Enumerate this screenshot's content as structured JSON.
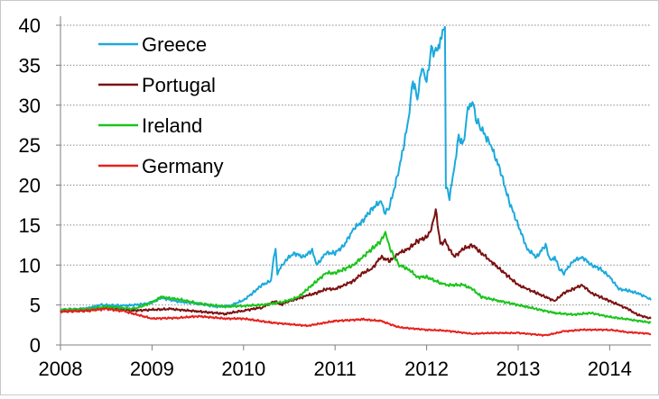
{
  "chart_data": {
    "type": "line",
    "title": "",
    "xlabel": "",
    "ylabel": "",
    "xlim": [
      2008.0,
      2014.45
    ],
    "ylim": [
      0,
      40
    ],
    "x_ticks": [
      2008,
      2009,
      2010,
      2011,
      2012,
      2013,
      2014
    ],
    "x_tick_labels": [
      "2008",
      "2009",
      "2010",
      "2011",
      "2012",
      "2013",
      "2014"
    ],
    "y_ticks": [
      0,
      5,
      10,
      15,
      20,
      25,
      30,
      35,
      40
    ],
    "y_tick_labels": [
      "0",
      "5",
      "10",
      "15",
      "20",
      "25",
      "30",
      "35",
      "40"
    ],
    "grid": "horizontal-dotted",
    "legend_position": "top-left",
    "series": [
      {
        "name": "Greece",
        "color": "#1ca9dc",
        "x": [
          2008.0,
          2008.25,
          2008.45,
          2008.7,
          2008.9,
          2009.0,
          2009.1,
          2009.3,
          2009.5,
          2009.7,
          2009.85,
          2010.0,
          2010.1,
          2010.2,
          2010.3,
          2010.33,
          2010.35,
          2010.37,
          2010.45,
          2010.55,
          2010.65,
          2010.75,
          2010.8,
          2010.9,
          2011.0,
          2011.1,
          2011.2,
          2011.3,
          2011.4,
          2011.5,
          2011.55,
          2011.6,
          2011.7,
          2011.8,
          2011.85,
          2011.9,
          2011.95,
          2012.0,
          2012.05,
          2012.1,
          2012.15,
          2012.2,
          2012.21,
          2012.25,
          2012.3,
          2012.35,
          2012.4,
          2012.45,
          2012.5,
          2012.55,
          2012.6,
          2012.7,
          2012.8,
          2012.9,
          2013.0,
          2013.1,
          2013.2,
          2013.3,
          2013.35,
          2013.4,
          2013.45,
          2013.5,
          2013.6,
          2013.7,
          2013.8,
          2013.9,
          2014.0,
          2014.1,
          2014.2,
          2014.3,
          2014.4,
          2014.45
        ],
        "values": [
          4.4,
          4.5,
          5.0,
          4.9,
          5.1,
          5.3,
          5.9,
          5.4,
          5.2,
          4.8,
          4.9,
          5.6,
          6.5,
          7.5,
          8.0,
          11.0,
          12.2,
          9.0,
          10.5,
          11.5,
          11.0,
          11.8,
          10.0,
          11.5,
          11.5,
          12.5,
          14.5,
          15.5,
          17.0,
          18.0,
          16.5,
          17.5,
          22.0,
          28.0,
          33.0,
          31.0,
          35.0,
          33.0,
          37.0,
          36.5,
          38.0,
          40.0,
          20.0,
          18.5,
          22.0,
          26.0,
          25.0,
          29.5,
          30.5,
          28.0,
          27.0,
          25.0,
          22.0,
          18.0,
          15.0,
          12.0,
          11.0,
          12.5,
          10.5,
          11.0,
          9.5,
          9.0,
          10.5,
          11.0,
          10.0,
          9.5,
          8.5,
          7.0,
          6.8,
          6.5,
          6.0,
          5.6
        ]
      },
      {
        "name": "Portugal",
        "color": "#7b1011",
        "x": [
          2008.0,
          2008.3,
          2008.5,
          2008.8,
          2009.0,
          2009.2,
          2009.5,
          2009.8,
          2010.0,
          2010.2,
          2010.35,
          2010.4,
          2010.5,
          2010.6,
          2010.7,
          2010.8,
          2010.9,
          2011.0,
          2011.1,
          2011.2,
          2011.3,
          2011.4,
          2011.5,
          2011.6,
          2011.7,
          2011.8,
          2011.9,
          2012.0,
          2012.05,
          2012.1,
          2012.15,
          2012.2,
          2012.3,
          2012.4,
          2012.5,
          2012.6,
          2012.7,
          2012.8,
          2012.9,
          2013.0,
          2013.1,
          2013.2,
          2013.3,
          2013.4,
          2013.5,
          2013.6,
          2013.7,
          2013.8,
          2013.9,
          2014.0,
          2014.1,
          2014.2,
          2014.3,
          2014.45
        ],
        "values": [
          4.2,
          4.3,
          4.7,
          4.3,
          4.4,
          4.5,
          4.2,
          3.9,
          4.3,
          4.7,
          5.5,
          5.0,
          5.5,
          5.8,
          6.2,
          6.5,
          7.0,
          7.0,
          7.5,
          8.0,
          9.0,
          9.5,
          11.0,
          10.5,
          11.5,
          12.0,
          13.0,
          13.5,
          14.5,
          17.0,
          12.5,
          13.0,
          11.0,
          12.0,
          12.5,
          11.5,
          10.5,
          9.5,
          8.5,
          7.5,
          7.0,
          6.5,
          6.0,
          5.5,
          6.5,
          7.0,
          7.5,
          6.5,
          6.0,
          5.5,
          5.0,
          4.5,
          3.8,
          3.3
        ]
      },
      {
        "name": "Ireland",
        "color": "#1bc41b",
        "x": [
          2008.0,
          2008.3,
          2008.5,
          2008.8,
          2009.0,
          2009.1,
          2009.3,
          2009.5,
          2009.8,
          2010.0,
          2010.2,
          2010.4,
          2010.5,
          2010.6,
          2010.7,
          2010.8,
          2010.9,
          2011.0,
          2011.1,
          2011.2,
          2011.3,
          2011.4,
          2011.5,
          2011.55,
          2011.6,
          2011.65,
          2011.7,
          2011.8,
          2011.9,
          2012.0,
          2012.2,
          2012.4,
          2012.5,
          2012.6,
          2012.8,
          2013.0,
          2013.2,
          2013.4,
          2013.6,
          2013.8,
          2014.0,
          2014.2,
          2014.45
        ],
        "values": [
          4.4,
          4.5,
          4.8,
          4.5,
          5.3,
          6.0,
          5.7,
          5.2,
          4.8,
          4.9,
          5.0,
          5.3,
          5.6,
          6.0,
          7.0,
          8.0,
          9.0,
          9.0,
          9.5,
          10.0,
          11.0,
          12.0,
          13.0,
          14.0,
          12.0,
          11.0,
          10.0,
          9.5,
          8.5,
          8.5,
          7.5,
          7.5,
          7.0,
          6.0,
          5.5,
          5.0,
          4.5,
          4.0,
          3.8,
          4.0,
          3.5,
          3.2,
          2.8
        ]
      },
      {
        "name": "Germany",
        "color": "#e5211c",
        "x": [
          2008.0,
          2008.3,
          2008.5,
          2008.7,
          2009.0,
          2009.3,
          2009.5,
          2009.8,
          2010.0,
          2010.3,
          2010.5,
          2010.7,
          2011.0,
          2011.3,
          2011.5,
          2011.7,
          2012.0,
          2012.2,
          2012.5,
          2012.7,
          2013.0,
          2013.3,
          2013.5,
          2013.7,
          2014.0,
          2014.2,
          2014.45
        ],
        "values": [
          4.2,
          4.3,
          4.5,
          4.2,
          3.3,
          3.4,
          3.6,
          3.3,
          3.3,
          2.8,
          2.6,
          2.4,
          3.0,
          3.2,
          3.0,
          2.2,
          1.9,
          1.8,
          1.4,
          1.5,
          1.5,
          1.2,
          1.7,
          1.9,
          1.9,
          1.6,
          1.4
        ]
      }
    ]
  }
}
